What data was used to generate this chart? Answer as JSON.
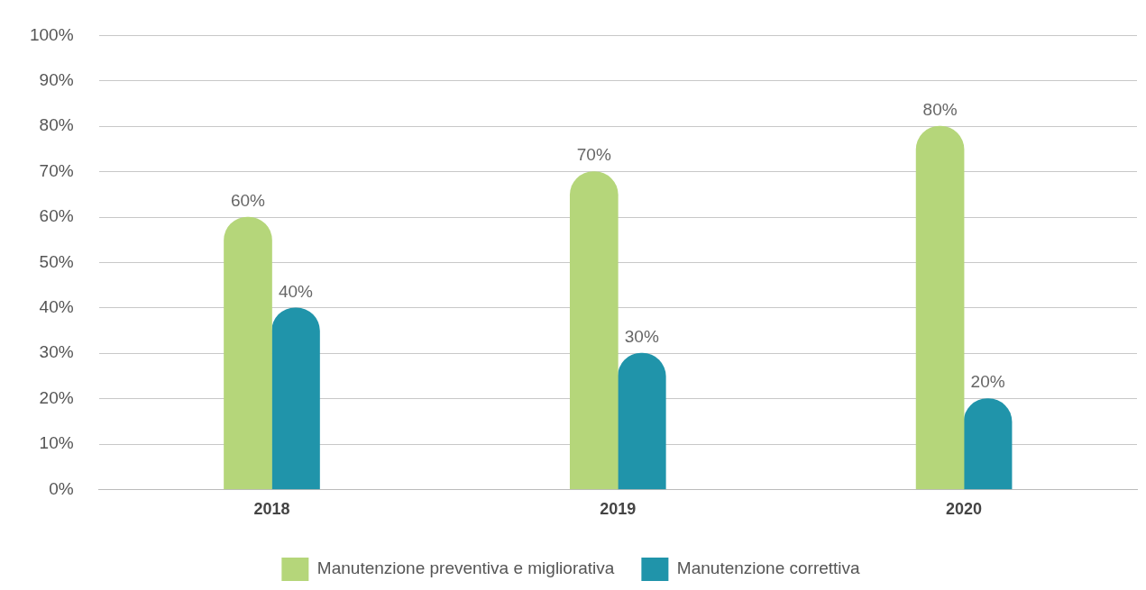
{
  "chart_data": {
    "type": "bar",
    "categories": [
      "2018",
      "2019",
      "2020"
    ],
    "series": [
      {
        "name": "Manutenzione preventiva e migliorativa",
        "color": "#b5d67a",
        "values": [
          60,
          70,
          80
        ],
        "value_labels": [
          "60%",
          "70%",
          "80%"
        ]
      },
      {
        "name": "Manutenzione correttiva",
        "color": "#2094aa",
        "values": [
          40,
          30,
          20
        ],
        "value_labels": [
          "40%",
          "30%",
          "20%"
        ]
      }
    ],
    "ylim": [
      0,
      100
    ],
    "yticks": [
      {
        "value": 0,
        "label": "0%"
      },
      {
        "value": 10,
        "label": "10%"
      },
      {
        "value": 20,
        "label": "20%"
      },
      {
        "value": 30,
        "label": "30%"
      },
      {
        "value": 40,
        "label": "40%"
      },
      {
        "value": 50,
        "label": "50%"
      },
      {
        "value": 60,
        "label": "60%"
      },
      {
        "value": 70,
        "label": "70%"
      },
      {
        "value": 80,
        "label": "80%"
      },
      {
        "value": 90,
        "label": "90%"
      },
      {
        "value": 100,
        "label": "100%"
      }
    ],
    "grid": "y",
    "legend": "bottom"
  }
}
